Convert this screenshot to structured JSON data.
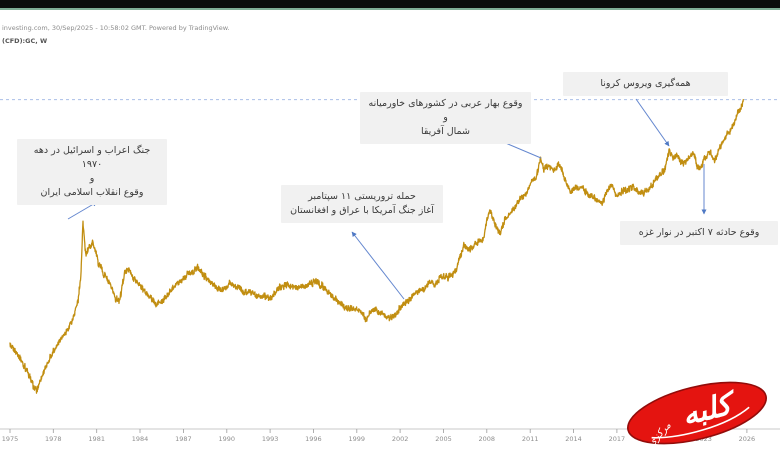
{
  "header": {
    "source_line": "investing.com, 30/Sep/2025 - 10:58:02 GMT. Powered by TradingView.",
    "symbol_line": "(CFD):GC, W"
  },
  "logo": {
    "main": "کلبه",
    "secondary": "مرکزی",
    "bg_color": "#e41410"
  },
  "chart_data": {
    "type": "line",
    "title": "",
    "series_name": "Gold Futures (GC), Weekly",
    "xlabel": "",
    "ylabel": "",
    "y_scale": "log",
    "y_axis_visible": false,
    "grid": false,
    "x_range": [
      1974.3,
      2026.5
    ],
    "x_ticks": [
      1975,
      1978,
      1981,
      1984,
      1987,
      1990,
      1993,
      1996,
      1999,
      2002,
      2005,
      2008,
      2011,
      2014,
      2017,
      2020,
      2023,
      2026
    ],
    "line_color": "#C18E11",
    "arrow_color": "#6487cf",
    "reference_line": {
      "value": 3860,
      "style": "dashed",
      "color": "#aabfe8"
    },
    "x": [
      1975.0,
      1975.4,
      1975.8,
      1976.2,
      1976.6,
      1976.85,
      1977.2,
      1977.6,
      1978.0,
      1978.4,
      1978.8,
      1979.1,
      1979.4,
      1979.7,
      1979.9,
      1980.05,
      1980.25,
      1980.5,
      1980.75,
      1981.1,
      1981.5,
      1981.9,
      1982.3,
      1982.6,
      1982.9,
      1983.15,
      1983.6,
      1984.1,
      1984.6,
      1985.1,
      1985.5,
      1985.9,
      1986.4,
      1986.9,
      1987.3,
      1987.7,
      1987.98,
      1988.4,
      1988.9,
      1989.35,
      1989.8,
      1990.2,
      1990.65,
      1991.1,
      1991.6,
      1992.1,
      1992.6,
      1993.1,
      1993.6,
      1994.1,
      1994.6,
      1995.1,
      1995.6,
      1996.1,
      1996.6,
      1997.1,
      1997.6,
      1998.1,
      1998.6,
      1999.1,
      1999.65,
      2000.1,
      2000.6,
      2001.1,
      2001.4,
      2001.72,
      2002.1,
      2002.6,
      2003.1,
      2003.6,
      2004.1,
      2004.45,
      2004.85,
      2005.3,
      2005.75,
      2006.2,
      2006.42,
      2006.85,
      2007.3,
      2007.75,
      2008.05,
      2008.25,
      2008.65,
      2008.92,
      2009.25,
      2009.7,
      2010.2,
      2010.7,
      2011.1,
      2011.45,
      2011.72,
      2011.95,
      2012.25,
      2012.65,
      2012.92,
      2013.15,
      2013.45,
      2013.75,
      2014.15,
      2014.55,
      2014.95,
      2015.35,
      2015.75,
      2015.98,
      2016.35,
      2016.65,
      2016.98,
      2017.35,
      2017.75,
      2018.15,
      2018.6,
      2018.95,
      2019.3,
      2019.65,
      2019.95,
      2020.25,
      2020.62,
      2020.92,
      2021.15,
      2021.45,
      2021.75,
      2022.05,
      2022.25,
      2022.55,
      2022.78,
      2023.05,
      2023.4,
      2023.78,
      2024.05,
      2024.35,
      2024.65,
      2024.9,
      2025.15,
      2025.4,
      2025.6,
      2025.75
    ],
    "values": [
      183,
      168,
      150,
      133,
      112,
      104,
      127,
      147,
      172,
      192,
      212,
      233,
      263,
      315,
      430,
      835,
      555,
      625,
      662,
      510,
      445,
      392,
      327,
      320,
      445,
      478,
      420,
      378,
      340,
      302,
      318,
      342,
      390,
      415,
      447,
      462,
      486,
      437,
      402,
      370,
      360,
      398,
      380,
      360,
      356,
      342,
      337,
      330,
      376,
      386,
      383,
      378,
      386,
      404,
      385,
      347,
      324,
      295,
      291,
      283,
      255,
      288,
      275,
      264,
      256,
      271,
      299,
      319,
      349,
      367,
      409,
      391,
      437,
      427,
      445,
      560,
      645,
      600,
      657,
      685,
      898,
      975,
      788,
      735,
      880,
      955,
      1100,
      1200,
      1390,
      1515,
      1895,
      1625,
      1695,
      1598,
      1715,
      1655,
      1400,
      1255,
      1285,
      1300,
      1200,
      1150,
      1095,
      1062,
      1258,
      1350,
      1145,
      1235,
      1265,
      1330,
      1200,
      1235,
      1295,
      1425,
      1515,
      1585,
      2062,
      1880,
      1945,
      1752,
      1795,
      1900,
      2040,
      1712,
      1635,
      1870,
      2010,
      1832,
      2050,
      2300,
      2520,
      2690,
      2950,
      3340,
      3450,
      3860
    ],
    "annotations": [
      {
        "id": "war-1970s",
        "lines": [
          "جنگ اعراب و اسرائیل در دهه ۱۹۷۰",
          "و",
          "وقوع انقلاب اسلامی ایران"
        ],
        "event_year": 1980,
        "event_price": 835
      },
      {
        "id": "september-11",
        "lines": [
          "حمله تروریستی ۱۱ سپتامبر",
          "آغاز جنگ آمریکا با عراق و افغانستان"
        ],
        "event_year": 2001.7,
        "event_price": 271
      },
      {
        "id": "arab-spring",
        "lines": [
          "وقوع بهار عربی در کشورهای خاورمیانه و",
          "شمال آفریقا"
        ],
        "event_year": 2011.7,
        "event_price": 1895
      },
      {
        "id": "covid-pandemic",
        "lines": [
          "همه‌گیری ویروس کرونا"
        ],
        "event_year": 2020.6,
        "event_price": 2062
      },
      {
        "id": "october-7-gaza",
        "lines": [
          "وقوع حادثه ۷ اکتبر در نوار غزه"
        ],
        "event_year": 2023.0,
        "event_price": 1870
      }
    ]
  }
}
